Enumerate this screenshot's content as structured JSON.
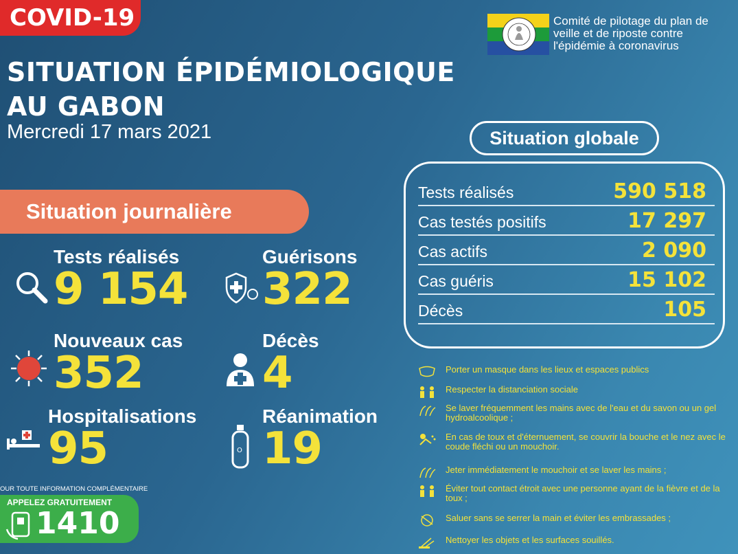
{
  "header": {
    "tag": "COVID-19",
    "title_line1": "SITUATION ÉPIDÉMIOLOGIQUE",
    "title_line2": "AU GABON",
    "date": "Mercredi 17 mars 2021"
  },
  "committee": {
    "text": "Comité de pilotage du plan de veille et de riposte contre l'épidémie à coronavirus",
    "flag_colors": [
      "#f4d21a",
      "#1d9b3a",
      "#2650a2"
    ]
  },
  "daily": {
    "banner": "Situation journalière",
    "stats": [
      {
        "label": "Tests réalisés",
        "value": "9 154",
        "icon": "magnifier-icon"
      },
      {
        "label": "Guérisons",
        "value": "322",
        "icon": "shield-virus-icon"
      },
      {
        "label": "Nouveaux cas",
        "value": "352",
        "icon": "virus-icon"
      },
      {
        "label": "Décès",
        "value": "4",
        "icon": "person-cross-icon"
      },
      {
        "label": "Hospitalisations",
        "value": "95",
        "icon": "hospital-bed-icon"
      },
      {
        "label": "Réanimation",
        "value": "19",
        "icon": "oxygen-tank-icon"
      }
    ]
  },
  "global": {
    "title": "Situation globale",
    "rows": [
      {
        "label": "Tests réalisés",
        "value": "590 518"
      },
      {
        "label": "Cas testés positifs",
        "value": "17 297"
      },
      {
        "label": "Cas actifs",
        "value": "2 090"
      },
      {
        "label": "Cas guéris",
        "value": "15 102"
      },
      {
        "label": "Décès",
        "value": "105"
      }
    ]
  },
  "tips": [
    {
      "text": "Porter un masque dans les lieux et espaces publics",
      "icon": "mask-icon"
    },
    {
      "text": "Respecter la distanciation sociale",
      "icon": "distance-icon"
    },
    {
      "text": "Se laver fréquemment les mains avec de l'eau et du savon ou un gel hydroalcoolique ;",
      "icon": "hand-wash-icon"
    },
    {
      "text": "En cas de toux et d'éternuement, se couvrir la bouche et le nez avec le coude fléchi ou un mouchoir.",
      "icon": "cough-icon"
    },
    {
      "text": "Jeter immédiatement le mouchoir et se laver les mains ;",
      "icon": "hand-wash-icon"
    },
    {
      "text": "Éviter tout contact étroit avec une personne ayant de la fièvre et de la toux ;",
      "icon": "distance-icon"
    },
    {
      "text": "Saluer sans se serrer la main et éviter les embrassades ;",
      "icon": "no-handshake-icon"
    },
    {
      "text": "Nettoyer les objets et les surfaces souillés.",
      "icon": "cleaning-icon"
    }
  ],
  "contact": {
    "info": "OUR TOUTE INFORMATION COMPLÉMENTAIRE",
    "call_label": "APPELEZ GRATUITEMENT",
    "number": "1410"
  },
  "colors": {
    "accent_yellow": "#f4e23a",
    "banner_orange": "#e87a5a",
    "tag_red": "#e02a2a",
    "call_green": "#3cae4a"
  }
}
